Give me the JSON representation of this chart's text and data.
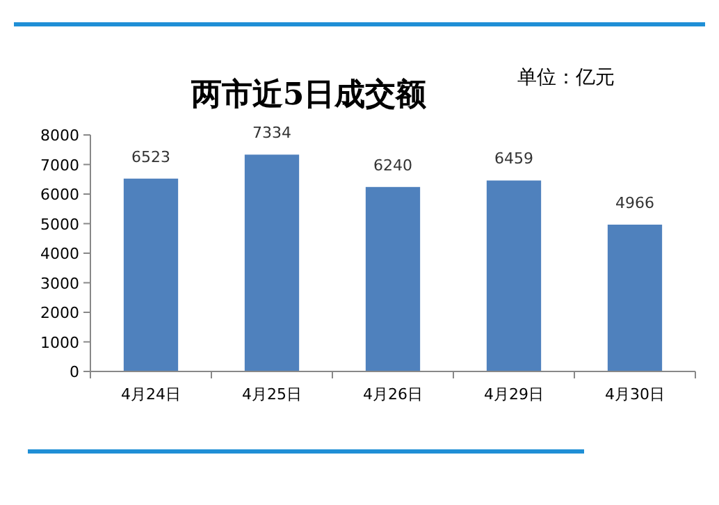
{
  "chart_data": {
    "type": "bar",
    "title": "两市近5日成交额",
    "annotations": [
      "单位：亿元"
    ],
    "categories": [
      "4月24日",
      "4月25日",
      "4月26日",
      "4月29日",
      "4月30日"
    ],
    "values": [
      6523,
      7334,
      6240,
      6459,
      4966
    ],
    "color": "#4f81bd",
    "ylim": [
      0,
      8000
    ],
    "yticks": [
      0,
      1000,
      2000,
      3000,
      4000,
      5000,
      6000,
      7000,
      8000
    ],
    "data_labels": true
  }
}
